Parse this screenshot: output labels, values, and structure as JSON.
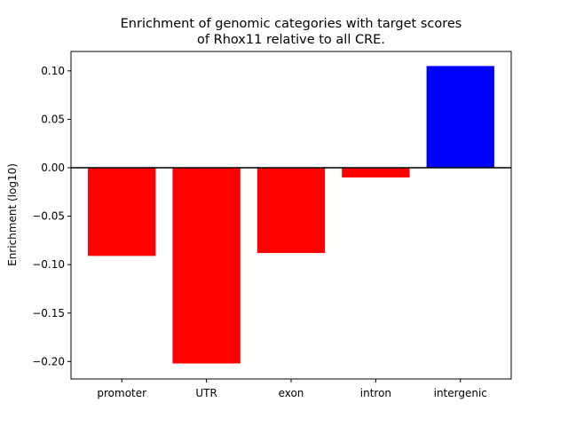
{
  "chart_data": {
    "type": "bar",
    "title": [
      "Enrichment of genomic categories with target scores",
      "of Rhox11 relative to all CRE."
    ],
    "xlabel": "",
    "ylabel": "Enrichment (log10)",
    "categories": [
      "promoter",
      "UTR",
      "exon",
      "intron",
      "intergenic"
    ],
    "values": [
      -0.091,
      -0.202,
      -0.088,
      -0.01,
      0.105
    ],
    "colors": [
      "#ff0000",
      "#ff0000",
      "#ff0000",
      "#ff0000",
      "#0000ff"
    ],
    "ylim": [
      -0.218,
      0.12
    ],
    "yticks": [
      0.1,
      0.05,
      0.0,
      -0.05,
      -0.1,
      -0.15,
      -0.2
    ],
    "ytick_labels": [
      "0.10",
      "0.05",
      "0.00",
      "−0.05",
      "−0.10",
      "−0.15",
      "−0.20"
    ],
    "zero_line": true,
    "grid": false,
    "legend": null
  }
}
